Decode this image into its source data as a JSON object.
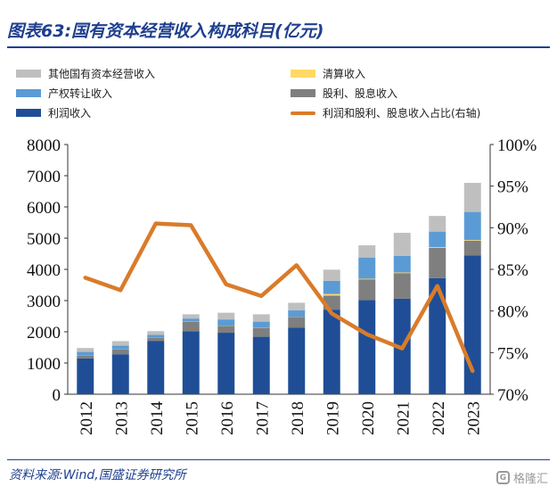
{
  "header": {
    "title": "图表63:国有资本经营收入构成科目(亿元)"
  },
  "footer": {
    "source": "资料来源:Wind,国盛证券研究所",
    "watermark": "格隆汇",
    "watermark_logo": "G"
  },
  "colors": {
    "other": "#bfbfbf",
    "transfer": "#5b9bd5",
    "profit": "#1f4e96",
    "liquidation": "#ffd966",
    "dividend": "#7f7f7f",
    "ratio": "#d97b2a"
  },
  "chart_data": {
    "type": "bar",
    "stacked": true,
    "categories": [
      "2012",
      "2013",
      "2014",
      "2015",
      "2016",
      "2017",
      "2018",
      "2019",
      "2020",
      "2021",
      "2022",
      "2023"
    ],
    "series": [
      {
        "name": "利润收入",
        "key": "profit",
        "axis": "left",
        "values": [
          1150,
          1280,
          1700,
          2020,
          1970,
          1840,
          2130,
          2710,
          3020,
          3060,
          3720,
          4450
        ]
      },
      {
        "name": "股利、股息收入",
        "key": "dividend",
        "axis": "left",
        "values": [
          80,
          150,
          100,
          300,
          220,
          280,
          350,
          450,
          660,
          820,
          970,
          470
        ]
      },
      {
        "name": "清算收入",
        "key": "liquidation",
        "axis": "left",
        "values": [
          5,
          5,
          5,
          5,
          5,
          5,
          5,
          50,
          20,
          20,
          20,
          20
        ]
      },
      {
        "name": "产权转让收入",
        "key": "transfer",
        "axis": "left",
        "values": [
          120,
          120,
          100,
          100,
          200,
          200,
          200,
          420,
          680,
          530,
          500,
          900
        ]
      },
      {
        "name": "其他国有资本经营收入",
        "key": "other",
        "axis": "left",
        "values": [
          125,
          145,
          115,
          135,
          215,
          235,
          245,
          360,
          390,
          740,
          500,
          930
        ]
      },
      {
        "name": "利润和股利、股息收入占比(右轴)",
        "key": "ratio",
        "axis": "right",
        "type": "line",
        "values": [
          84.0,
          82.5,
          90.5,
          90.3,
          83.2,
          81.8,
          85.5,
          79.7,
          77.2,
          75.5,
          83.0,
          72.8
        ]
      }
    ],
    "legend": [
      {
        "label": "其他国有资本经营收入",
        "key": "other",
        "kind": "bar"
      },
      {
        "label": "清算收入",
        "key": "liquidation",
        "kind": "bar"
      },
      {
        "label": "产权转让收入",
        "key": "transfer",
        "kind": "bar"
      },
      {
        "label": "股利、股息收入",
        "key": "dividend",
        "kind": "bar"
      },
      {
        "label": "利润收入",
        "key": "profit",
        "kind": "bar"
      },
      {
        "label": "利润和股利、股息收入占比(右轴)",
        "key": "ratio",
        "kind": "line"
      }
    ],
    "ylim": [
      0,
      8000
    ],
    "yticks": [
      "0",
      "1000",
      "2000",
      "3000",
      "4000",
      "5000",
      "6000",
      "7000",
      "8000"
    ],
    "y2lim": [
      70,
      100
    ],
    "y2ticks": [
      "70%",
      "75%",
      "80%",
      "85%",
      "90%",
      "95%",
      "100%"
    ],
    "grid": false,
    "legend_position": "top"
  }
}
